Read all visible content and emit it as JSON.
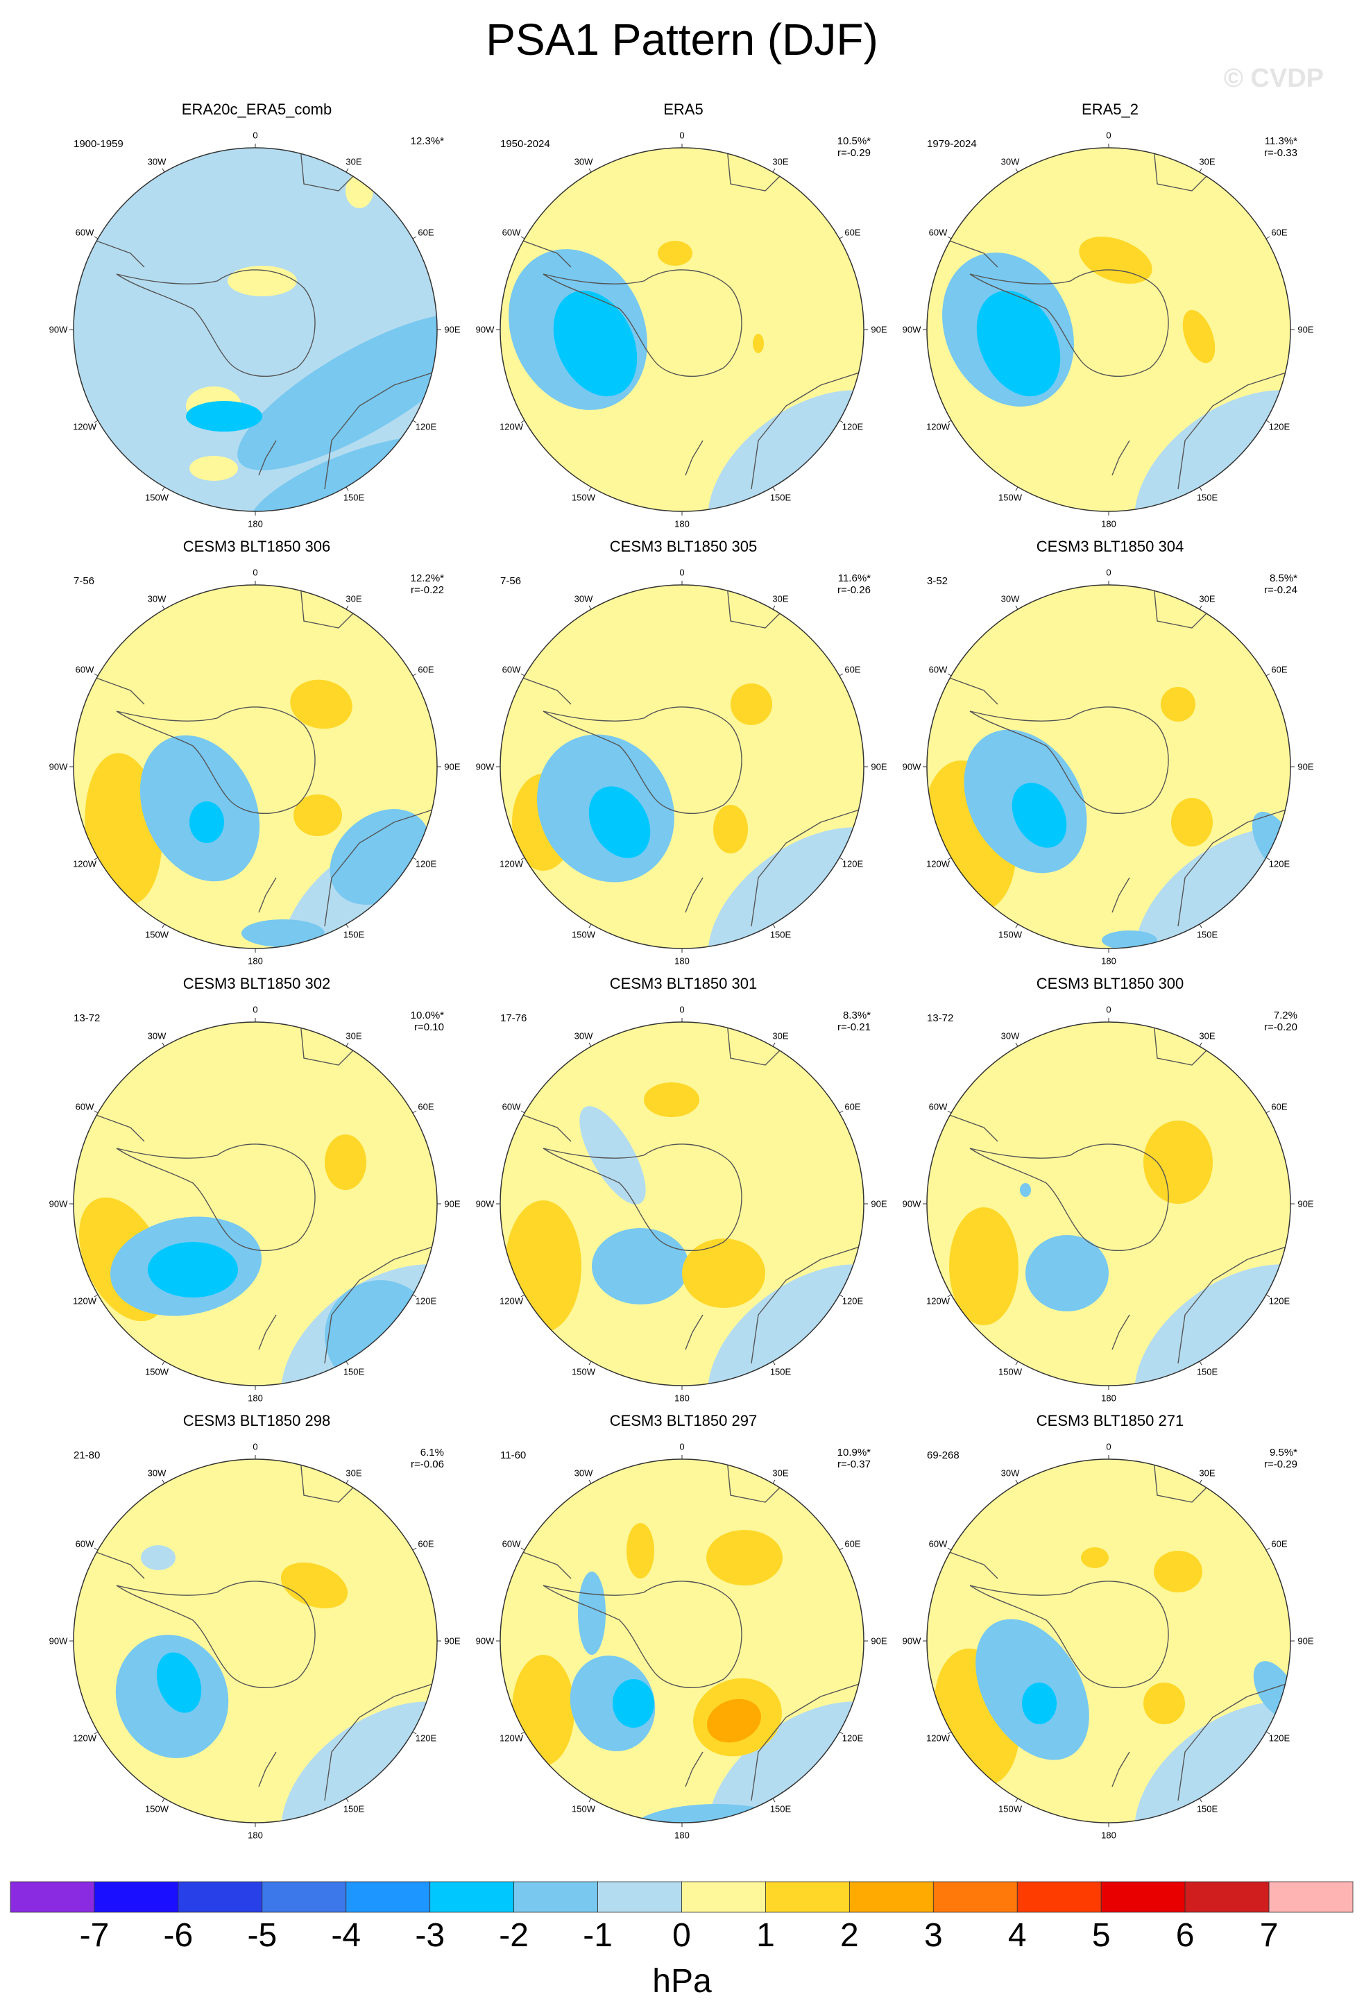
{
  "title": "PSA1 Pattern (DJF)",
  "watermark": "© CVDP",
  "units": "hPa",
  "map": {
    "projection": "south-polar-stereographic",
    "variable": "PSA1 pattern",
    "lon_labels": [
      "0",
      "30E",
      "60E",
      "90E",
      "120E",
      "150E",
      "180",
      "150W",
      "120W",
      "90W",
      "60W",
      "30W"
    ]
  },
  "colorbar": {
    "ticks": [
      "-7",
      "-6",
      "-5",
      "-4",
      "-3",
      "-2",
      "-1",
      "0",
      "1",
      "2",
      "3",
      "4",
      "5",
      "6",
      "7"
    ],
    "colors": [
      "#8a2be2",
      "#1a10ff",
      "#2840e8",
      "#3c78ea",
      "#1e96ff",
      "#00c8ff",
      "#78c8f0",
      "#b4dcf0",
      "#fff89a",
      "#ffd728",
      "#ffaa00",
      "#ff780a",
      "#ff3c00",
      "#e80000",
      "#d01e1e",
      "#ffb4b4"
    ]
  },
  "panels": [
    {
      "title": "ERA20c_ERA5_comb",
      "period": "1900-1959",
      "pct": "12.3%*",
      "r": ""
    },
    {
      "title": "ERA5",
      "period": "1950-2024",
      "pct": "10.5%*",
      "r": "r=-0.29"
    },
    {
      "title": "ERA5_2",
      "period": "1979-2024",
      "pct": "11.3%*",
      "r": "r=-0.33"
    },
    {
      "title": "CESM3 BLT1850 306",
      "period": "7-56",
      "pct": "12.2%*",
      "r": "r=-0.22"
    },
    {
      "title": "CESM3 BLT1850 305",
      "period": "7-56",
      "pct": "11.6%*",
      "r": "r=-0.26"
    },
    {
      "title": "CESM3 BLT1850 304",
      "period": "3-52",
      "pct": "8.5%*",
      "r": "r=-0.24"
    },
    {
      "title": "CESM3 BLT1850 302",
      "period": "13-72",
      "pct": "10.0%*",
      "r": "r=0.10"
    },
    {
      "title": "CESM3 BLT1850 301",
      "period": "17-76",
      "pct": "8.3%*",
      "r": "r=-0.21"
    },
    {
      "title": "CESM3 BLT1850 300",
      "period": "13-72",
      "pct": "7.2%",
      "r": "r=-0.20"
    },
    {
      "title": "CESM3 BLT1850 298",
      "period": "21-80",
      "pct": "6.1%",
      "r": "r=-0.06"
    },
    {
      "title": "CESM3 BLT1850 297",
      "period": "11-60",
      "pct": "10.9%*",
      "r": "r=-0.37"
    },
    {
      "title": "CESM3 BLT1850 271",
      "period": "69-268",
      "pct": "9.5%*",
      "r": "r=-0.29"
    }
  ]
}
